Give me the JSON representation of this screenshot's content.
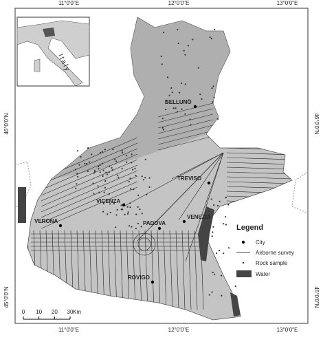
{
  "map": {
    "lon_labels": [
      "11°0'0\"E",
      "12°0'0\"E",
      "13°0'0\"E"
    ],
    "lat_labels": [
      "46°0'0\"N",
      "45°0'0\"N"
    ],
    "inset_label": "Italy",
    "cities": [
      "BELLUNO",
      "TREVISO",
      "VICENZA",
      "PADOVA",
      "VENEZIA",
      "VERONA",
      "ROVIGO"
    ],
    "legend": {
      "title": "Legend",
      "items": [
        "City",
        "Airborne survey",
        "Rock sample",
        "Water"
      ]
    },
    "scale": {
      "ticks": [
        0,
        10,
        20,
        30
      ],
      "unit": "Km"
    }
  }
}
